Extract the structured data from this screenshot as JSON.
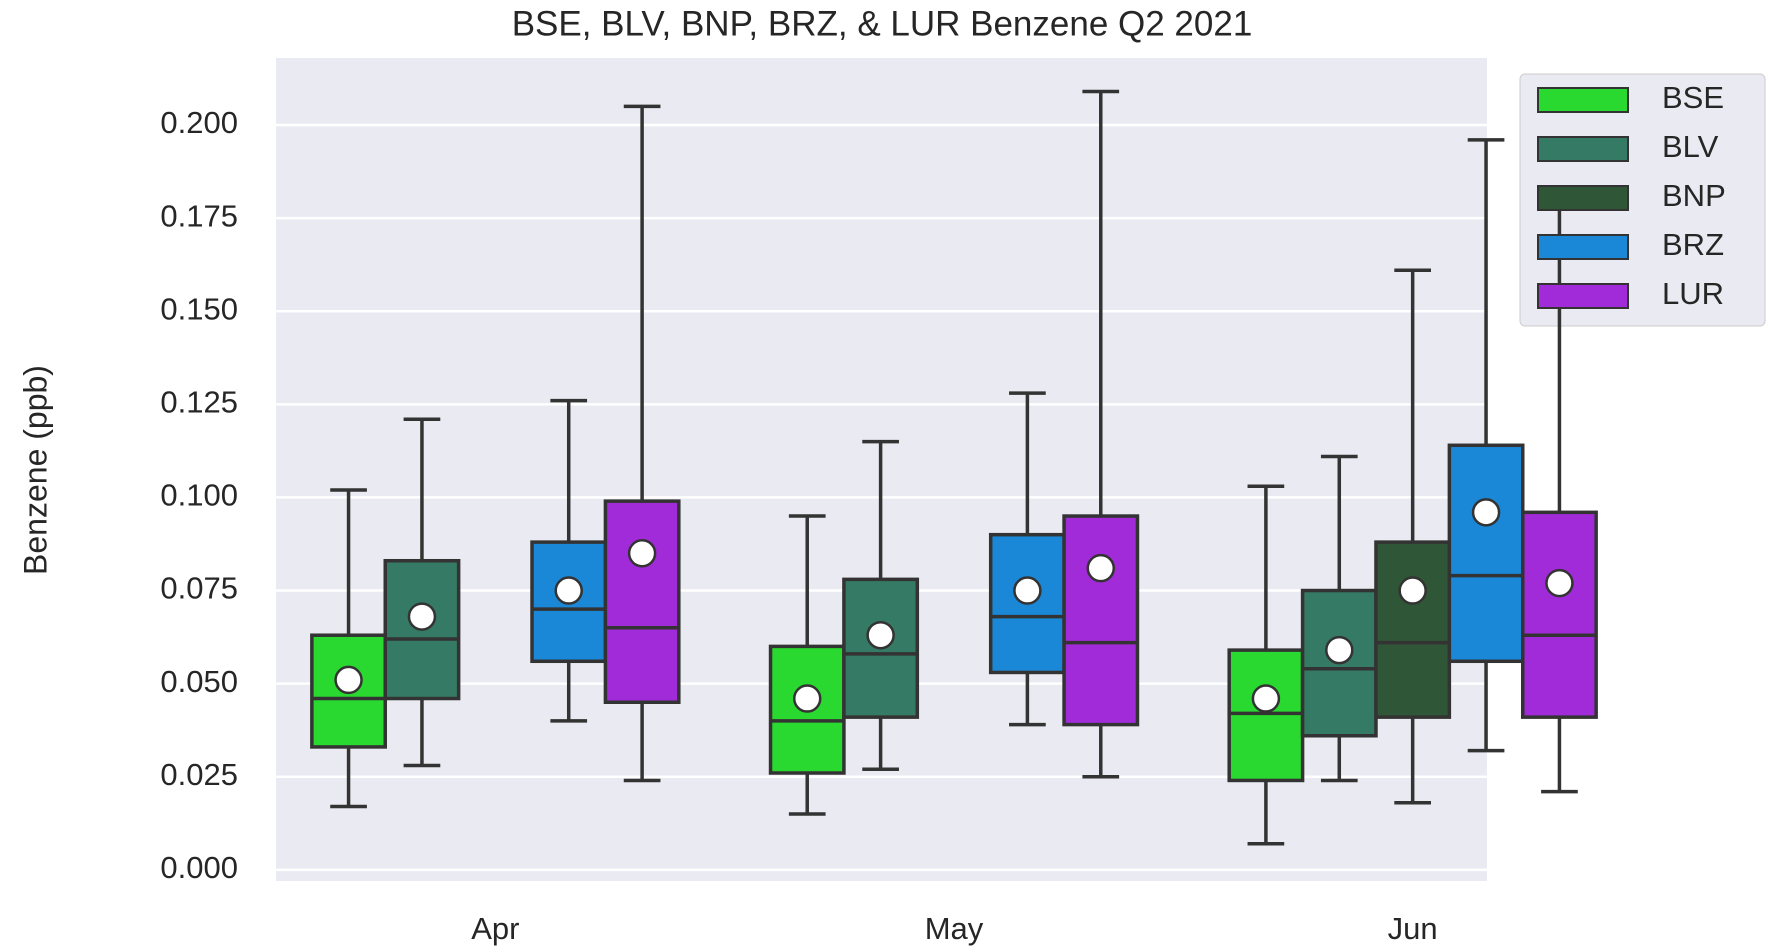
{
  "chart_data": {
    "type": "box",
    "title": "BSE, BLV, BNP, BRZ, & LUR Benzene Q2 2021",
    "ylabel": "Benzene (ppb)",
    "categories": [
      "Apr",
      "May",
      "Jun"
    ],
    "ylim": [
      -0.003,
      0.218
    ],
    "yticks": [
      {
        "value": 0,
        "label": "0.000"
      },
      {
        "value": 0.025,
        "label": "0.025"
      },
      {
        "value": 0.05,
        "label": "0.050"
      },
      {
        "value": 0.075,
        "label": "0.075"
      },
      {
        "value": 0.1,
        "label": "0.100"
      },
      {
        "value": 0.125,
        "label": "0.125"
      },
      {
        "value": 0.15,
        "label": "0.150"
      },
      {
        "value": 0.175,
        "label": "0.175"
      },
      {
        "value": 0.2,
        "label": "0.200"
      }
    ],
    "grid": true,
    "legend": "upper right outside",
    "series": [
      {
        "name": "BSE",
        "color": "#2ad92f",
        "low": [
          0.017,
          0.015,
          0.007
        ],
        "q1": [
          0.033,
          0.026,
          0.024
        ],
        "median": [
          0.046,
          0.04,
          0.042
        ],
        "q3": [
          0.063,
          0.06,
          0.059
        ],
        "high": [
          0.102,
          0.095,
          0.103
        ],
        "mean": [
          0.051,
          0.046,
          0.046
        ]
      },
      {
        "name": "BLV",
        "color": "#357a64",
        "low": [
          0.028,
          0.027,
          0.024
        ],
        "q1": [
          0.046,
          0.041,
          0.036
        ],
        "median": [
          0.062,
          0.058,
          0.054
        ],
        "q3": [
          0.083,
          0.078,
          0.075
        ],
        "high": [
          0.121,
          0.115,
          0.111
        ],
        "mean": [
          0.068,
          0.063,
          0.059
        ]
      },
      {
        "name": "BNP",
        "color": "#2f5637",
        "low": [
          null,
          null,
          0.018
        ],
        "q1": [
          null,
          null,
          0.041
        ],
        "median": [
          null,
          null,
          0.061
        ],
        "q3": [
          null,
          null,
          0.088
        ],
        "high": [
          null,
          null,
          0.161
        ],
        "mean": [
          null,
          null,
          0.075
        ]
      },
      {
        "name": "BRZ",
        "color": "#1b88d7",
        "low": [
          0.04,
          0.039,
          0.032
        ],
        "q1": [
          0.056,
          0.053,
          0.056
        ],
        "median": [
          0.07,
          0.068,
          0.079
        ],
        "q3": [
          0.088,
          0.09,
          0.114
        ],
        "high": [
          0.126,
          0.128,
          0.196
        ],
        "mean": [
          0.075,
          0.075,
          0.096
        ]
      },
      {
        "name": "LUR",
        "color": "#a22bd9",
        "low": [
          0.024,
          0.025,
          0.021
        ],
        "q1": [
          0.045,
          0.039,
          0.041
        ],
        "median": [
          0.065,
          0.061,
          0.063
        ],
        "q3": [
          0.099,
          0.095,
          0.096
        ],
        "high": [
          0.205,
          0.209,
          0.179
        ],
        "mean": [
          0.085,
          0.081,
          0.077
        ]
      }
    ]
  }
}
